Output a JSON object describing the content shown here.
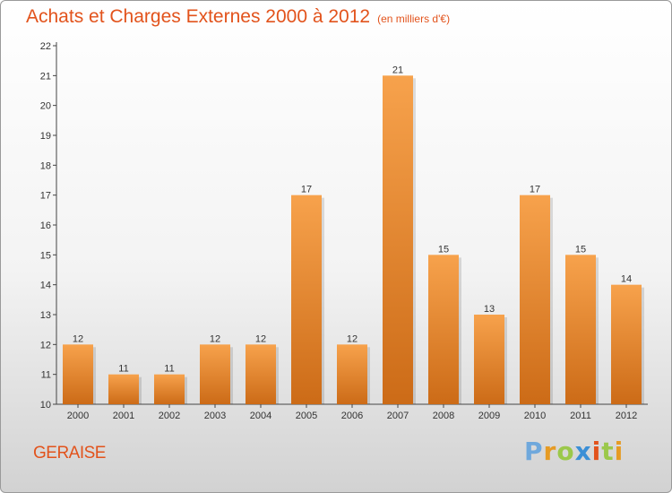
{
  "title": "Achats et Charges Externes 2000 à 2012",
  "subtitle": "(en milliers d'€)",
  "commune": "GERAISE",
  "logo": {
    "letters": [
      "P",
      "r",
      "o",
      "x",
      "i",
      "t",
      "i"
    ]
  },
  "colors": {
    "bar_light": "#f7a24c",
    "bar_dark": "#cc6b17",
    "accent": "#e2531c"
  },
  "chart_data": {
    "type": "bar",
    "categories": [
      "2000",
      "2001",
      "2002",
      "2003",
      "2004",
      "2005",
      "2006",
      "2007",
      "2008",
      "2009",
      "2010",
      "2011",
      "2012"
    ],
    "values": [
      12,
      11,
      11,
      12,
      12,
      17,
      12,
      21,
      15,
      13,
      17,
      15,
      14
    ],
    "value_labels": [
      "12",
      "11",
      "11",
      "12",
      "12",
      "17",
      "12",
      "21",
      "15",
      "13",
      "17",
      "15",
      "14"
    ],
    "title": "Achats et Charges Externes 2000 à 2012",
    "ylim": [
      10,
      22
    ],
    "yticks": [
      10,
      11,
      12,
      13,
      14,
      15,
      16,
      17,
      18,
      19,
      20,
      21,
      22
    ],
    "ytick_labels": [
      "10",
      "11",
      "12",
      "13",
      "14",
      "15",
      "16",
      "17",
      "18",
      "19",
      "20",
      "21",
      "22"
    ],
    "grid": false,
    "legend": "none"
  }
}
